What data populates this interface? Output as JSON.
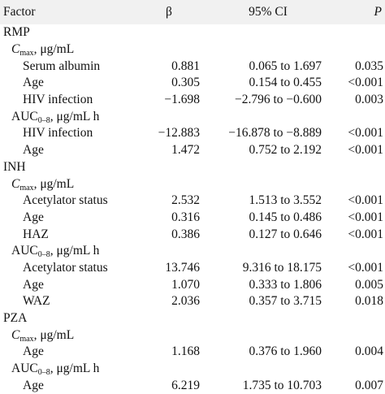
{
  "header": {
    "factor": "Factor",
    "beta": "β",
    "ci": "95% CI",
    "p": "P"
  },
  "sections": [
    {
      "drug": "RMP",
      "groups": [
        {
          "label_main": "C",
          "label_sub": "max",
          "label_unit": ", μg/mL",
          "rows": [
            {
              "factor": "Serum albumin",
              "beta": "0.881",
              "ci": "0.065 to 1.697",
              "p": "0.035"
            },
            {
              "factor": "Age",
              "beta": "0.305",
              "ci": "0.154 to 0.455",
              "p": "<0.001"
            },
            {
              "factor": "HIV infection",
              "beta": "−1.698",
              "ci": "−2.796 to −0.600",
              "p": "0.003"
            }
          ]
        },
        {
          "label_main": "AUC",
          "label_sub": "0–8",
          "label_unit": ", μg/mL h",
          "rows": [
            {
              "factor": "HIV infection",
              "beta": "−12.883",
              "ci": "−16.878 to −8.889",
              "p": "<0.001"
            },
            {
              "factor": "Age",
              "beta": "1.472",
              "ci": "0.752 to 2.192",
              "p": "<0.001"
            }
          ]
        }
      ]
    },
    {
      "drug": "INH",
      "groups": [
        {
          "label_main": "C",
          "label_sub": "max",
          "label_unit": ", μg/mL",
          "rows": [
            {
              "factor": "Acetylator status",
              "beta": "2.532",
              "ci": "1.513 to 3.552",
              "p": "<0.001"
            },
            {
              "factor": "Age",
              "beta": "0.316",
              "ci": "0.145 to 0.486",
              "p": "<0.001"
            },
            {
              "factor": "HAZ",
              "beta": "0.386",
              "ci": "0.127 to 0.646",
              "p": "<0.001"
            }
          ]
        },
        {
          "label_main": "AUC",
          "label_sub": "0–8",
          "label_unit": ", μg/mL h",
          "rows": [
            {
              "factor": "Acetylator status",
              "beta": "13.746",
              "ci": "9.316 to 18.175",
              "p": "<0.001"
            },
            {
              "factor": "Age",
              "beta": "1.070",
              "ci": "0.333 to 1.806",
              "p": "0.005"
            },
            {
              "factor": "WAZ",
              "beta": "2.036",
              "ci": "0.357 to 3.715",
              "p": "0.018"
            }
          ]
        }
      ]
    },
    {
      "drug": "PZA",
      "groups": [
        {
          "label_main": "C",
          "label_sub": "max",
          "label_unit": ", μg/mL",
          "rows": [
            {
              "factor": "Age",
              "beta": "1.168",
              "ci": "0.376 to 1.960",
              "p": "0.004"
            }
          ]
        },
        {
          "label_main": "AUC",
          "label_sub": "0–8",
          "label_unit": ", μg/mL h",
          "rows": [
            {
              "factor": "Age",
              "beta": "6.219",
              "ci": "1.735 to 10.703",
              "p": "0.007"
            }
          ]
        }
      ]
    }
  ]
}
